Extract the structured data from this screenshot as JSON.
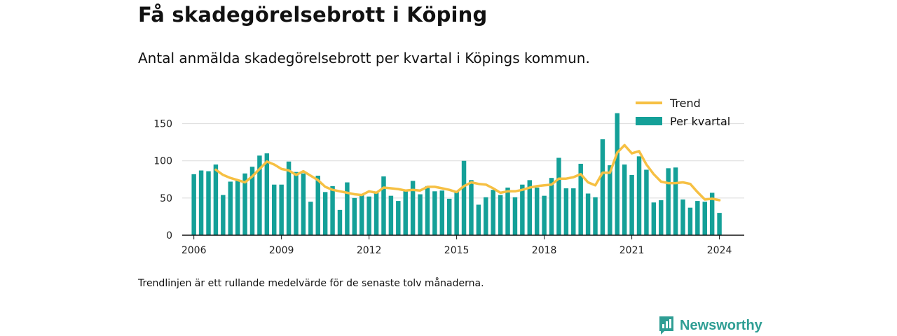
{
  "title": "Få skadegörelsebrott i Köping",
  "subtitle": "Antal anmälda skadegörelsebrott per kvartal i Köpings kommun.",
  "footnote": "Trendlinjen är ett rullande medelvärde för de senaste tolv månaderna.",
  "brand": {
    "name": "Newsworthy",
    "icon": "newsworthy-logo-icon",
    "color": "#2f9e94"
  },
  "chart_data": {
    "type": "bar",
    "x_start": "2006 Q1",
    "quarters_per_year": 4,
    "xlim": [
      2005.6,
      2024.85
    ],
    "ylim": [
      0,
      175
    ],
    "yticks": [
      0,
      50,
      100,
      150
    ],
    "xticks": [
      2006,
      2009,
      2012,
      2015,
      2018,
      2021,
      2024
    ],
    "grid": true,
    "legend_position": "top-right",
    "series": [
      {
        "name": "Per kvartal",
        "kind": "bar",
        "color": "#14a098",
        "values": [
          82,
          87,
          86,
          95,
          54,
          72,
          73,
          83,
          92,
          107,
          110,
          68,
          68,
          99,
          85,
          83,
          45,
          80,
          58,
          66,
          34,
          71,
          50,
          55,
          52,
          57,
          79,
          53,
          46,
          60,
          73,
          55,
          66,
          59,
          60,
          49,
          59,
          100,
          74,
          41,
          51,
          61,
          54,
          64,
          51,
          68,
          74,
          64,
          53,
          77,
          104,
          63,
          63,
          96,
          56,
          51,
          129,
          94,
          164,
          95,
          81,
          106,
          88,
          44,
          47,
          90,
          91,
          48,
          37,
          46,
          45,
          57,
          30
        ]
      },
      {
        "name": "Trend",
        "kind": "line",
        "color": "#f6c043",
        "values": [
          null,
          null,
          null,
          88,
          81,
          77,
          74,
          71,
          79,
          89,
          99,
          95,
          89,
          87,
          81,
          86,
          80,
          74,
          65,
          61,
          59,
          57,
          55,
          54,
          59,
          57,
          64,
          63,
          62,
          60,
          61,
          60,
          65,
          65,
          63,
          61,
          58,
          66,
          71,
          69,
          68,
          63,
          57,
          59,
          59,
          61,
          64,
          66,
          67,
          68,
          76,
          76,
          78,
          82,
          71,
          67,
          84,
          84,
          111,
          121,
          110,
          113,
          95,
          82,
          72,
          70,
          70,
          71,
          69,
          58,
          48,
          49,
          47
        ]
      }
    ]
  }
}
